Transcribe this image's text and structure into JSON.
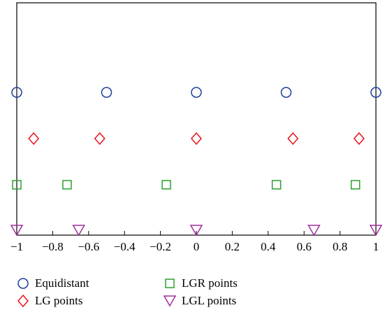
{
  "chart_data": {
    "type": "scatter",
    "title": "",
    "xlabel": "",
    "ylabel": "",
    "xlim": [
      -1,
      1
    ],
    "x_ticks": [
      -1,
      -0.8,
      -0.6,
      -0.4,
      -0.2,
      0,
      0.2,
      0.4,
      0.6,
      0.8,
      1
    ],
    "x_tick_labels": [
      "−1",
      "−0.8",
      "−0.6",
      "−0.4",
      "−0.2",
      "0",
      "0.2",
      "0.4",
      "0.6",
      "0.8",
      "1"
    ],
    "grid": false,
    "legend_position": "bottom",
    "series": [
      {
        "name": "Equidistant",
        "marker": "circle",
        "color": "#1f3f9a",
        "x": [
          -1,
          -0.5,
          0,
          0.5,
          1
        ]
      },
      {
        "name": "LG points",
        "marker": "diamond",
        "color": "#e8141c",
        "x": [
          -0.906,
          -0.538,
          0,
          0.538,
          0.906
        ]
      },
      {
        "name": "LGR points",
        "marker": "square",
        "color": "#2ca02c",
        "x": [
          -1,
          -0.72,
          -0.167,
          0.446,
          0.886
        ]
      },
      {
        "name": "LGL points",
        "marker": "triangle-down",
        "color": "#a0309a",
        "x": [
          -1,
          -0.655,
          0,
          0.655,
          1
        ]
      }
    ]
  }
}
